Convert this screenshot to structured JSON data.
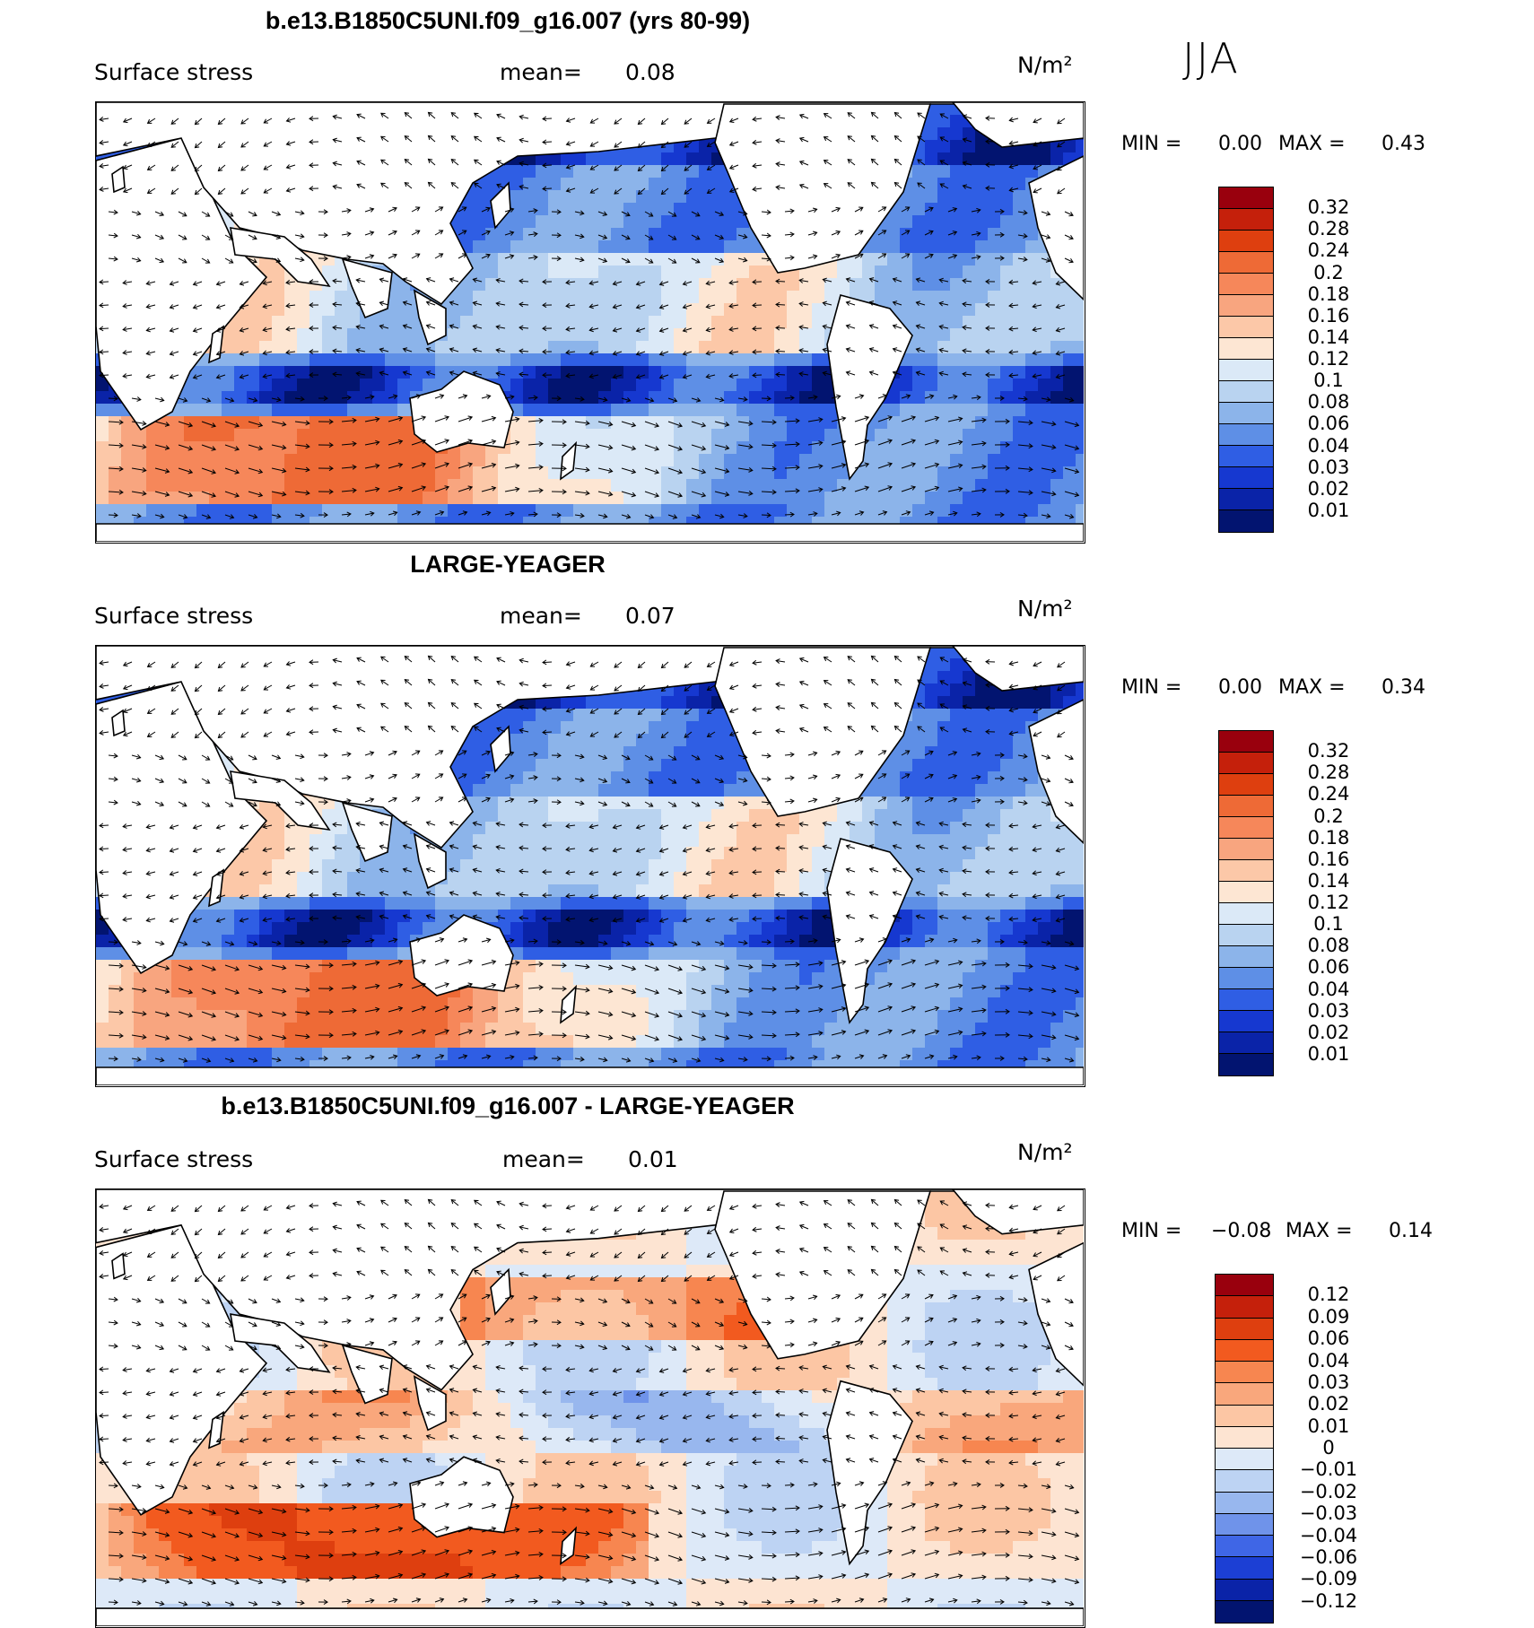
{
  "season": "JJA",
  "panels": [
    {
      "title": "b.e13.B1850C5UNI.f09_g16.007 (yrs 80-99)",
      "variable": "Surface stress",
      "mean_label": "mean=",
      "mean_value": "0.08",
      "units": "N/m²",
      "min_label": "MIN =",
      "min_value": "0.00",
      "max_label": "MAX =",
      "max_value": "0.43",
      "colorbar": {
        "levels": [
          "0.32",
          "0.28",
          "0.24",
          "0.2",
          "0.18",
          "0.16",
          "0.14",
          "0.12",
          "0.1",
          "0.08",
          "0.06",
          "0.04",
          "0.03",
          "0.02",
          "0.01"
        ],
        "colors": [
          "#99000d",
          "#c5200b",
          "#de3f0f",
          "#ee6a36",
          "#f6875a",
          "#f8a57f",
          "#fcc8a8",
          "#fde6d3",
          "#dbe9f7",
          "#b9d3f0",
          "#8cb4ea",
          "#5e8fe6",
          "#2f5ee4",
          "#1638d0",
          "#0a23a8",
          "#021470"
        ]
      }
    },
    {
      "title": "LARGE-YEAGER",
      "variable": "Surface stress",
      "mean_label": "mean=",
      "mean_value": "0.07",
      "units": "N/m²",
      "min_label": "MIN =",
      "min_value": "0.00",
      "max_label": "MAX =",
      "max_value": "0.34",
      "colorbar": {
        "levels": [
          "0.32",
          "0.28",
          "0.24",
          "0.2",
          "0.18",
          "0.16",
          "0.14",
          "0.12",
          "0.1",
          "0.08",
          "0.06",
          "0.04",
          "0.03",
          "0.02",
          "0.01"
        ],
        "colors": [
          "#99000d",
          "#c5200b",
          "#de3f0f",
          "#ee6a36",
          "#f6875a",
          "#f8a57f",
          "#fcc8a8",
          "#fde6d3",
          "#dbe9f7",
          "#b9d3f0",
          "#8cb4ea",
          "#5e8fe6",
          "#2f5ee4",
          "#1638d0",
          "#0a23a8",
          "#021470"
        ]
      }
    },
    {
      "title": "b.e13.B1850C5UNI.f09_g16.007 - LARGE-YEAGER",
      "variable": "Surface stress",
      "mean_label": "mean=",
      "mean_value": "0.01",
      "units": "N/m²",
      "min_label": "MIN =",
      "min_value": "−0.08",
      "max_label": "MAX =",
      "max_value": "0.14",
      "colorbar": {
        "levels": [
          "0.12",
          "0.09",
          "0.06",
          "0.04",
          "0.03",
          "0.02",
          "0.01",
          "0",
          "−0.01",
          "−0.02",
          "−0.03",
          "−0.04",
          "−0.06",
          "−0.09",
          "−0.12"
        ],
        "colors": [
          "#99000d",
          "#c5200b",
          "#de3f0f",
          "#f25a1f",
          "#f78650",
          "#f9a77c",
          "#fcc6a4",
          "#fde4d2",
          "#dde9f8",
          "#bdd3f3",
          "#98b7ee",
          "#6f93ea",
          "#3f66e6",
          "#1c3fd4",
          "#0a23a8",
          "#021470"
        ]
      }
    }
  ]
}
